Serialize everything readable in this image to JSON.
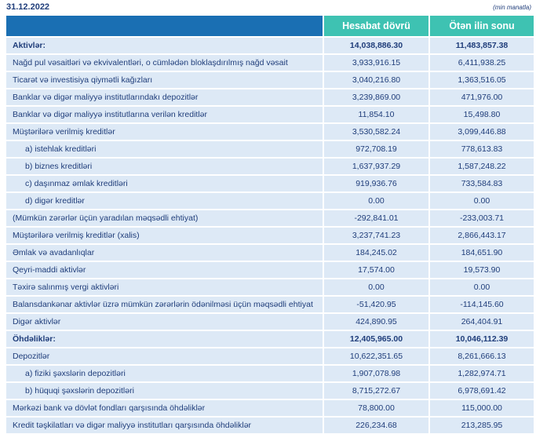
{
  "header": {
    "date": "31.12.2022",
    "unit": "(min manatla)"
  },
  "table": {
    "columns": [
      "Hesabat dövrü",
      "Ötən ilin sonu"
    ],
    "rows": [
      {
        "label": "Aktivlər:",
        "cells": [
          "14,038,886.30",
          "11,483,857.38"
        ],
        "bold": true
      },
      {
        "label": "Nağd pul vəsaitləri və  ekvivalentləri, o cümlədən bloklaşdırılmış nağd vəsait",
        "cells": [
          "3,933,916.15",
          "6,411,938.25"
        ]
      },
      {
        "label": "Ticarət və investisiya qiymətli kağızları",
        "cells": [
          "3,040,216.80",
          "1,363,516.05"
        ]
      },
      {
        "label": "Banklar və digər maliyyə institutlarındakı depozitlər",
        "cells": [
          "3,239,869.00",
          "471,976.00"
        ]
      },
      {
        "label": "Banklar və digər maliyyə institutlarına verilən kreditlər",
        "cells": [
          "11,854.10",
          "15,498.80"
        ]
      },
      {
        "label": "Müştərilərə verilmiş kreditlər",
        "cells": [
          "3,530,582.24",
          "3,099,446.88"
        ]
      },
      {
        "label": "a) istehlak kreditləri",
        "cells": [
          "972,708.19",
          "778,613.83"
        ],
        "indent": true
      },
      {
        "label": "b) biznes kreditləri",
        "cells": [
          "1,637,937.29",
          "1,587,248.22"
        ],
        "indent": true
      },
      {
        "label": "c) daşınmaz əmlak kreditləri",
        "cells": [
          "919,936.76",
          "733,584.83"
        ],
        "indent": true
      },
      {
        "label": "d) digər kreditlər",
        "cells": [
          "0.00",
          "0.00"
        ],
        "indent": true
      },
      {
        "label": "(Mümkün zərərlər üçün yaradılan məqsədli ehtiyat)",
        "cells": [
          "-292,841.01",
          "-233,003.71"
        ]
      },
      {
        "label": "Müştərilərə verilmiş kreditlər (xalis)",
        "cells": [
          "3,237,741.23",
          "2,866,443.17"
        ]
      },
      {
        "label": "Əmlak və avadanlıqlar",
        "cells": [
          "184,245.02",
          "184,651.90"
        ]
      },
      {
        "label": "Qeyri-maddi aktivlər",
        "cells": [
          "17,574.00",
          "19,573.90"
        ]
      },
      {
        "label": "Təxirə salınmış vergi aktivləri",
        "cells": [
          "0.00",
          "0.00"
        ]
      },
      {
        "label": "Balansdankənar aktivlər üzrə mümkün zərərlərin ödənilməsi üçün məqsədli ehtiyat",
        "cells": [
          "-51,420.95",
          "-114,145.60"
        ]
      },
      {
        "label": "Digər aktivlər",
        "cells": [
          "424,890.95",
          "264,404.91"
        ]
      },
      {
        "label": "Öhdəliklər:",
        "cells": [
          "12,405,965.00",
          "10,046,112.39"
        ],
        "bold": true
      },
      {
        "label": "Depozitlər",
        "cells": [
          "10,622,351.65",
          "8,261,666.13"
        ]
      },
      {
        "label": "a) fiziki şəxslərin depozitləri",
        "cells": [
          "1,907,078.98",
          "1,282,974.71"
        ],
        "indent": true
      },
      {
        "label": "b) hüquqi şəxslərin depozitləri",
        "cells": [
          "8,715,272.67",
          "6,978,691.42"
        ],
        "indent": true
      },
      {
        "label": "Mərkəzi bank və dövlət fondları qarşısında öhdəliklər",
        "cells": [
          "78,800.00",
          "115,000.00"
        ]
      },
      {
        "label": "Kredit təşkilatları və digər maliyyə institutları qarşısında öhdəliklər",
        "cells": [
          "226,234.68",
          "213,285.95"
        ]
      }
    ]
  }
}
